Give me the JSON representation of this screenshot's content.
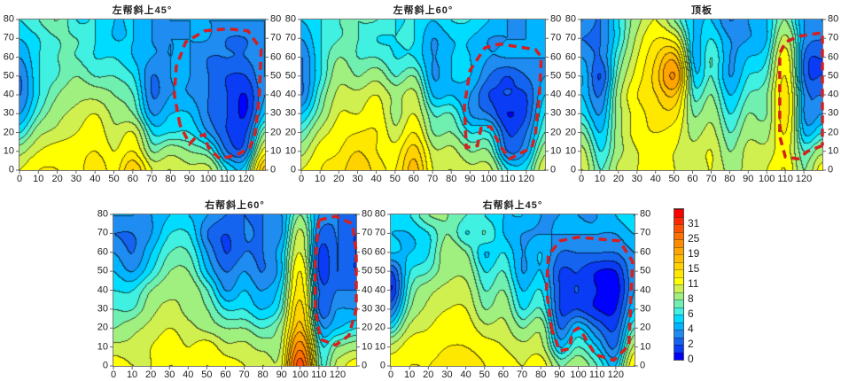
{
  "colorbar": {
    "labels": [
      "0",
      "2",
      "4",
      "6",
      "8",
      "11",
      "15",
      "19",
      "25",
      "31"
    ],
    "levels": [
      0,
      2,
      4,
      6,
      8,
      11,
      15,
      19,
      25,
      31
    ],
    "colors": [
      "#0000ff",
      "#0a3cf5",
      "#1464f0",
      "#1e8cf0",
      "#00b4ff",
      "#00dcff",
      "#40f0e0",
      "#70f0b0",
      "#a0f080",
      "#d0f050",
      "#ffff00",
      "#ffe800",
      "#ffd200",
      "#ffbc00",
      "#ffa400",
      "#ff8c00",
      "#ff7000",
      "#ff5000",
      "#ff2800",
      "#ff0000"
    ],
    "outline_color": "#d42020"
  },
  "chart_data": [
    {
      "type": "heatmap",
      "title": "左帮斜上45°",
      "xlim": [
        0,
        130
      ],
      "ylim": [
        0,
        80
      ],
      "xticks": [
        "0",
        "10",
        "20",
        "30",
        "40",
        "50",
        "60",
        "70",
        "80",
        "90",
        "100",
        "110",
        "120"
      ],
      "yticks": [
        "0",
        "10",
        "20",
        "30",
        "40",
        "50",
        "60",
        "70",
        "80"
      ],
      "x": [
        0,
        10,
        20,
        30,
        40,
        50,
        60,
        70,
        80,
        90,
        100,
        110,
        120,
        130
      ],
      "y": [
        80,
        70,
        60,
        50,
        40,
        30,
        20,
        10,
        0
      ],
      "values": [
        [
          6,
          7,
          8,
          6,
          6,
          5,
          5,
          4,
          4,
          4,
          4,
          4,
          4,
          4
        ],
        [
          5,
          6,
          7,
          7,
          6,
          5,
          5,
          4,
          4,
          4,
          4,
          3,
          3,
          4
        ],
        [
          4,
          6,
          7,
          7,
          6,
          6,
          5,
          4,
          4,
          4,
          3,
          3,
          3,
          4
        ],
        [
          3,
          6,
          7,
          8,
          7,
          7,
          6,
          3,
          4,
          4,
          3,
          2,
          2,
          4
        ],
        [
          3,
          6,
          8,
          9,
          9,
          8,
          7,
          3,
          4,
          4,
          3,
          2,
          1,
          4
        ],
        [
          4,
          7,
          9,
          10,
          11,
          9,
          8,
          4,
          5,
          5,
          3,
          2,
          1,
          5
        ],
        [
          6,
          9,
          10,
          11,
          12,
          10,
          11,
          6,
          6,
          6,
          4,
          2,
          2,
          8
        ],
        [
          9,
          11,
          12,
          12,
          13,
          11,
          13,
          8,
          9,
          8,
          7,
          3,
          3,
          12
        ],
        [
          11,
          13,
          13,
          12,
          15,
          12,
          17,
          11,
          11,
          10,
          10,
          6,
          6,
          18
        ]
      ],
      "highlight_outline": [
        [
          85,
          24
        ],
        [
          82,
          40
        ],
        [
          83,
          55
        ],
        [
          88,
          68
        ],
        [
          98,
          74
        ],
        [
          110,
          75
        ],
        [
          121,
          74
        ],
        [
          128,
          64
        ],
        [
          127,
          40
        ],
        [
          125,
          20
        ],
        [
          122,
          12
        ],
        [
          115,
          8
        ],
        [
          106,
          6
        ],
        [
          100,
          12
        ],
        [
          98,
          19
        ],
        [
          93,
          17
        ],
        [
          90,
          14
        ],
        [
          85,
          24
        ]
      ]
    },
    {
      "type": "heatmap",
      "title": "左帮斜上60°",
      "xlim": [
        0,
        130
      ],
      "ylim": [
        0,
        80
      ],
      "xticks": [
        "0",
        "10",
        "20",
        "30",
        "40",
        "50",
        "60",
        "70",
        "80",
        "90",
        "100",
        "110",
        "120"
      ],
      "yticks": [
        "0",
        "10",
        "20",
        "30",
        "40",
        "50",
        "60",
        "70",
        "80"
      ],
      "x": [
        0,
        10,
        20,
        30,
        40,
        50,
        60,
        70,
        80,
        90,
        100,
        110,
        120,
        130
      ],
      "y": [
        80,
        70,
        60,
        50,
        40,
        30,
        20,
        10,
        0
      ],
      "values": [
        [
          5,
          6,
          7,
          7,
          7,
          6,
          6,
          5,
          6,
          6,
          5,
          4,
          4,
          4
        ],
        [
          4,
          6,
          7,
          7,
          6,
          6,
          6,
          4,
          5,
          5,
          4,
          4,
          4,
          4
        ],
        [
          3,
          6,
          8,
          7,
          7,
          6,
          6,
          4,
          5,
          5,
          4,
          4,
          4,
          4
        ],
        [
          3,
          6,
          9,
          8,
          9,
          7,
          8,
          4,
          5,
          5,
          3,
          2,
          3,
          4
        ],
        [
          3,
          7,
          10,
          10,
          11,
          9,
          10,
          5,
          5,
          4,
          2,
          2,
          2,
          5
        ],
        [
          5,
          8,
          11,
          11,
          12,
          9,
          11,
          7,
          7,
          4,
          3,
          1,
          2,
          6
        ],
        [
          7,
          10,
          12,
          13,
          13,
          10,
          13,
          8,
          8,
          6,
          6,
          2,
          3,
          7
        ],
        [
          9,
          12,
          13,
          15,
          13,
          12,
          16,
          10,
          10,
          8,
          8,
          3,
          4,
          9
        ],
        [
          11,
          13,
          14,
          17,
          14,
          13,
          18,
          11,
          11,
          10,
          10,
          6,
          6,
          11
        ]
      ],
      "highlight_outline": [
        [
          96,
          23
        ],
        [
          94,
          13
        ],
        [
          88,
          12
        ],
        [
          87,
          34
        ],
        [
          90,
          53
        ],
        [
          98,
          65
        ],
        [
          106,
          67
        ],
        [
          125,
          64
        ],
        [
          128,
          60
        ],
        [
          127,
          40
        ],
        [
          125,
          20
        ],
        [
          123,
          12
        ],
        [
          111,
          6
        ],
        [
          106,
          13
        ],
        [
          101,
          23
        ],
        [
          96,
          23
        ]
      ]
    },
    {
      "type": "heatmap",
      "title": "顶板",
      "xlim": [
        0,
        130
      ],
      "ylim": [
        0,
        80
      ],
      "xticks": [
        "0",
        "10",
        "20",
        "30",
        "40",
        "50",
        "60",
        "70",
        "80",
        "90",
        "100",
        "110",
        "120"
      ],
      "yticks": [
        "0",
        "10",
        "20",
        "30",
        "40",
        "50",
        "60",
        "70",
        "80"
      ],
      "x": [
        0,
        10,
        20,
        30,
        40,
        50,
        60,
        70,
        80,
        90,
        100,
        110,
        120,
        130
      ],
      "y": [
        80,
        70,
        60,
        50,
        40,
        30,
        20,
        10,
        0
      ],
      "values": [
        [
          4,
          3,
          6,
          9,
          11,
          8,
          5,
          5,
          3,
          4,
          5,
          8,
          4,
          4
        ],
        [
          3,
          3,
          6,
          10,
          13,
          12,
          5,
          6,
          4,
          4,
          5,
          10,
          4,
          3
        ],
        [
          4,
          3,
          7,
          11,
          15,
          18,
          5,
          7,
          4,
          5,
          6,
          12,
          3,
          2
        ],
        [
          5,
          2,
          8,
          12,
          16,
          22,
          6,
          7,
          4,
          6,
          7,
          13,
          3,
          2
        ],
        [
          5,
          3,
          9,
          13,
          15,
          17,
          7,
          8,
          5,
          7,
          8,
          14,
          4,
          3
        ],
        [
          6,
          4,
          9,
          12,
          14,
          14,
          8,
          9,
          6,
          8,
          8,
          14,
          4,
          4
        ],
        [
          8,
          5,
          9,
          12,
          13,
          12,
          9,
          10,
          7,
          9,
          9,
          13,
          5,
          6
        ],
        [
          10,
          6,
          9,
          11,
          12,
          11,
          10,
          11,
          8,
          10,
          10,
          12,
          7,
          9
        ],
        [
          11,
          7,
          10,
          11,
          12,
          11,
          10,
          11,
          9,
          10,
          11,
          13,
          8,
          12
        ]
      ],
      "highlight_outline": [
        [
          130,
          13
        ],
        [
          122,
          10
        ],
        [
          117,
          6
        ],
        [
          110,
          7
        ],
        [
          107,
          18
        ],
        [
          107,
          40
        ],
        [
          107,
          62
        ],
        [
          110,
          68
        ],
        [
          117,
          71
        ],
        [
          130,
          73
        ],
        [
          130,
          13
        ]
      ]
    },
    {
      "type": "heatmap",
      "title": "右帮斜上60°",
      "xlim": [
        0,
        130
      ],
      "ylim": [
        0,
        80
      ],
      "xticks": [
        "0",
        "10",
        "20",
        "30",
        "40",
        "50",
        "60",
        "70",
        "80",
        "90",
        "100",
        "110",
        "120"
      ],
      "yticks": [
        "0",
        "10",
        "20",
        "30",
        "40",
        "50",
        "60",
        "70",
        "80"
      ],
      "x": [
        0,
        10,
        20,
        30,
        40,
        50,
        60,
        70,
        80,
        90,
        100,
        110,
        120,
        130
      ],
      "y": [
        80,
        70,
        60,
        50,
        40,
        30,
        20,
        10,
        0
      ],
      "values": [
        [
          4,
          4,
          4,
          5,
          5,
          4,
          3,
          3,
          3,
          4,
          8,
          4,
          3,
          3
        ],
        [
          3,
          3,
          4,
          6,
          6,
          3,
          2,
          3,
          3,
          4,
          10,
          3,
          3,
          2
        ],
        [
          4,
          3,
          5,
          7,
          7,
          4,
          2,
          3,
          3,
          5,
          11,
          2,
          3,
          2
        ],
        [
          5,
          4,
          6,
          8,
          8,
          5,
          3,
          4,
          3,
          5,
          13,
          2,
          3,
          2
        ],
        [
          6,
          6,
          8,
          9,
          9,
          7,
          4,
          5,
          4,
          6,
          14,
          3,
          3,
          3
        ],
        [
          7,
          7,
          9,
          10,
          9,
          8,
          6,
          6,
          5,
          7,
          16,
          3,
          4,
          4
        ],
        [
          8,
          9,
          10,
          11,
          10,
          9,
          8,
          8,
          7,
          9,
          18,
          5,
          5,
          6
        ],
        [
          10,
          10,
          11,
          12,
          11,
          12,
          10,
          10,
          9,
          10,
          24,
          7,
          8,
          9
        ],
        [
          12,
          11,
          11,
          13,
          12,
          13,
          12,
          11,
          11,
          11,
          30,
          8,
          10,
          12
        ]
      ],
      "highlight_outline": [
        [
          110,
          77
        ],
        [
          119,
          79
        ],
        [
          128,
          75
        ],
        [
          130,
          60
        ],
        [
          130,
          30
        ],
        [
          126,
          16
        ],
        [
          119,
          11
        ],
        [
          111,
          14
        ],
        [
          108,
          30
        ],
        [
          108,
          55
        ],
        [
          110,
          77
        ]
      ]
    },
    {
      "type": "heatmap",
      "title": "右帮斜上45°",
      "xlim": [
        0,
        130
      ],
      "ylim": [
        0,
        80
      ],
      "xticks": [
        "0",
        "10",
        "20",
        "30",
        "40",
        "50",
        "60",
        "70",
        "80",
        "90",
        "100",
        "110",
        "120"
      ],
      "yticks": [
        "0",
        "10",
        "20",
        "30",
        "40",
        "50",
        "60",
        "70",
        "80"
      ],
      "x": [
        0,
        10,
        20,
        30,
        40,
        50,
        60,
        70,
        80,
        90,
        100,
        110,
        120,
        130
      ],
      "y": [
        80,
        70,
        60,
        50,
        40,
        30,
        20,
        10,
        0
      ],
      "values": [
        [
          5,
          6,
          8,
          8,
          7,
          6,
          5,
          5,
          4,
          4,
          4,
          4,
          5,
          6
        ],
        [
          5,
          5,
          6,
          8,
          6,
          7,
          5,
          4,
          4,
          4,
          4,
          4,
          4,
          5
        ],
        [
          5,
          5,
          6,
          9,
          8,
          5,
          6,
          4,
          5,
          3,
          3,
          3,
          3,
          4
        ],
        [
          2,
          6,
          7,
          9,
          9,
          6,
          7,
          4,
          5,
          2,
          2,
          1,
          1,
          4
        ],
        [
          1,
          7,
          9,
          10,
          10,
          7,
          8,
          5,
          6,
          2,
          2,
          1,
          0.5,
          4
        ],
        [
          3,
          8,
          10,
          11,
          11,
          8,
          9,
          6,
          7,
          2,
          2,
          1,
          1,
          5
        ],
        [
          6,
          10,
          11,
          12,
          12,
          10,
          10,
          8,
          9,
          3,
          5,
          3,
          2,
          7
        ],
        [
          10,
          12,
          12,
          13,
          13,
          12,
          11,
          10,
          10,
          5,
          7,
          5,
          3,
          10
        ],
        [
          12,
          13,
          13,
          14,
          14,
          13,
          12,
          11,
          12,
          8,
          9,
          7,
          5,
          13
        ]
      ],
      "highlight_outline": [
        [
          86,
          19
        ],
        [
          83,
          40
        ],
        [
          84,
          58
        ],
        [
          90,
          66
        ],
        [
          100,
          68
        ],
        [
          122,
          66
        ],
        [
          129,
          55
        ],
        [
          128,
          34
        ],
        [
          127,
          11
        ],
        [
          119,
          3
        ],
        [
          109,
          6
        ],
        [
          103,
          16
        ],
        [
          100,
          20
        ],
        [
          97,
          18
        ],
        [
          95,
          9
        ],
        [
          90,
          8
        ],
        [
          86,
          19
        ]
      ]
    }
  ]
}
